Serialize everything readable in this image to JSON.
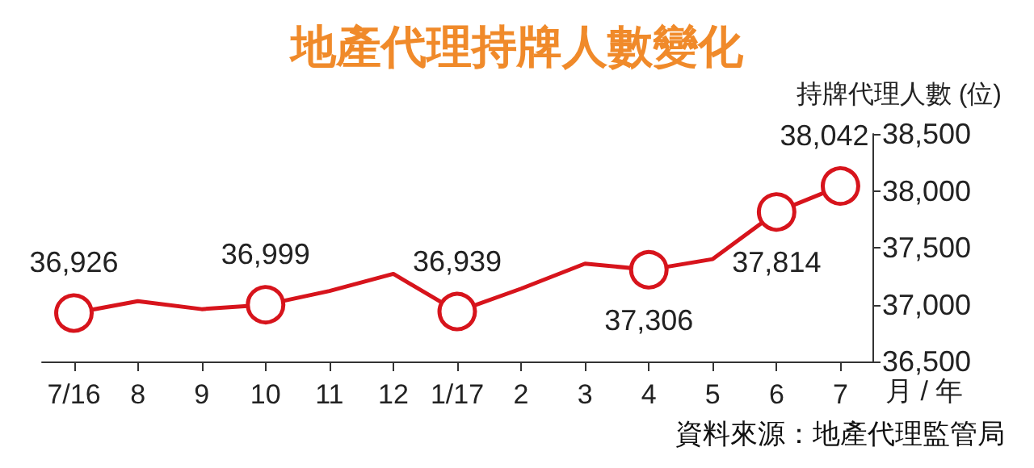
{
  "chart_data": {
    "type": "line",
    "title": "地產代理持牌人數變化",
    "ylabel": "持牌代理人數 (位)",
    "xlabel": "月 / 年",
    "annotations": [
      "資料來源：地產代理監管局"
    ],
    "categories": [
      "7/16",
      "8",
      "9",
      "10",
      "11",
      "12",
      "1/17",
      "2",
      "3",
      "4",
      "5",
      "6",
      "7"
    ],
    "series": [
      {
        "color": "#d7141c",
        "values": [
          36926,
          37030,
          36960,
          36999,
          37120,
          37270,
          36939,
          37140,
          37360,
          37306,
          37400,
          37814,
          38042
        ],
        "value_labels": [
          "36,926",
          null,
          null,
          "36,999",
          null,
          null,
          "36,939",
          null,
          null,
          "37,306",
          null,
          "37,814",
          "38,042"
        ]
      }
    ],
    "ylim": [
      36500,
      38500
    ],
    "yticks": [
      {
        "value": 36500,
        "label": "36,500"
      },
      {
        "value": 37000,
        "label": "37,000"
      },
      {
        "value": 37500,
        "label": "37,500"
      },
      {
        "value": 38000,
        "label": "38,000"
      },
      {
        "value": 38500,
        "label": "38,500"
      }
    ],
    "grid": false,
    "line_style": "solid"
  }
}
